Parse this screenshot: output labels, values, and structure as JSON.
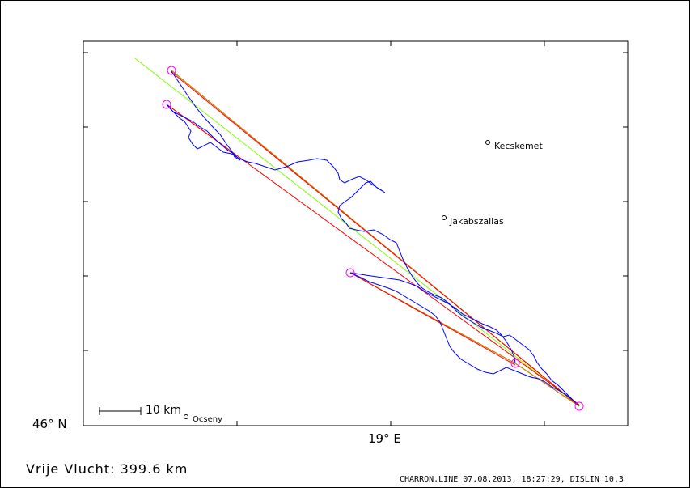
{
  "axes": {
    "lat_label": "46° N",
    "lon_label": "19° E"
  },
  "towns": {
    "kecskemet": "Kecskemet",
    "jakabszallas": "Jakabszallas",
    "ocseny": "Ocseny"
  },
  "scale_bar": {
    "label": "10 km"
  },
  "flight": {
    "distance_label": "Vrije Vlucht:  399.6 km"
  },
  "footer": {
    "text": "CHARRON.LINE 07.08.2013, 18:27:29, DISLIN 10.3"
  },
  "colors": {
    "track": "#0000ff",
    "task_leg": "#ff0000",
    "outer_leg": "#c08000",
    "reference_line": "#80ff00",
    "turnpoint": "#ff00ff"
  }
}
